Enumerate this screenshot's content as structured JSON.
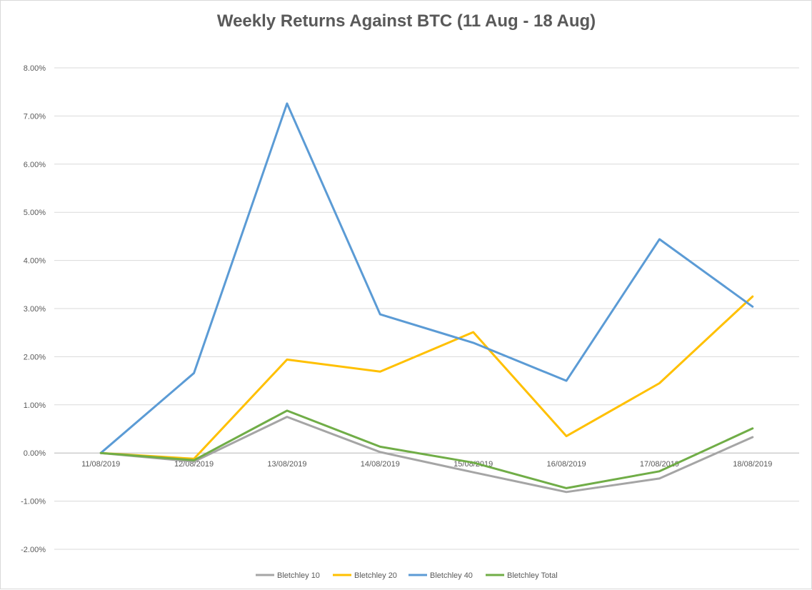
{
  "chart_data": {
    "type": "line",
    "title": "Weekly Returns Against BTC (11 Aug - 18 Aug)",
    "xlabel": "",
    "ylabel": "",
    "categories": [
      "11/08/2019",
      "12/08/2019",
      "13/08/2019",
      "14/08/2019",
      "15/08/2019",
      "16/08/2019",
      "17/08/2019",
      "18/08/2019"
    ],
    "yticks": [
      "8.00%",
      "7.00%",
      "6.00%",
      "5.00%",
      "4.00%",
      "3.00%",
      "2.00%",
      "1.00%",
      "0.00%",
      "-1.00%",
      "-2.00%"
    ],
    "ylim": [
      -2,
      8
    ],
    "grid": true,
    "legend_position": "bottom",
    "series": [
      {
        "name": "Bletchley 10",
        "color": "#a5a5a5",
        "values": [
          0,
          -0.18,
          0.75,
          0.02,
          -0.4,
          -0.81,
          -0.53,
          0.33
        ]
      },
      {
        "name": "Bletchley 20",
        "color": "#ffc000",
        "values": [
          0,
          -0.12,
          1.94,
          1.69,
          2.51,
          0.35,
          1.45,
          3.25
        ]
      },
      {
        "name": "Bletchley 40",
        "color": "#5b9bd5",
        "values": [
          0,
          1.66,
          7.26,
          2.88,
          2.29,
          1.5,
          4.44,
          3.04
        ]
      },
      {
        "name": "Bletchley Total",
        "color": "#70ad47",
        "values": [
          0,
          -0.15,
          0.88,
          0.13,
          -0.2,
          -0.73,
          -0.38,
          0.51
        ]
      }
    ]
  }
}
